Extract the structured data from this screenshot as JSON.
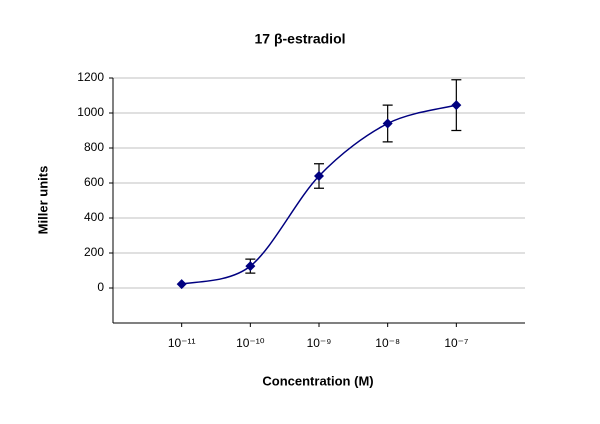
{
  "chart_data": {
    "type": "line",
    "title": "17 β-estradiol",
    "x_label": "Concentration (M)",
    "y_label": "Miller units",
    "x": [
      1e-11,
      1e-10,
      1e-09,
      1e-08,
      1e-07
    ],
    "series": [
      {
        "color": "#000080",
        "values": [
          22,
          125,
          640,
          940,
          1045
        ],
        "errors": [
          0,
          40,
          70,
          105,
          145
        ]
      }
    ],
    "xscale": "log",
    "xlim": [
      1e-12,
      1e-06
    ],
    "xticks": [
      {
        "value": 1e-11,
        "label": "10⁻¹¹"
      },
      {
        "value": 1e-10,
        "label": "10⁻¹⁰"
      },
      {
        "value": 1e-09,
        "label": "10⁻⁹"
      },
      {
        "value": 1e-08,
        "label": "10⁻⁸"
      },
      {
        "value": 1e-07,
        "label": "10⁻⁷"
      }
    ],
    "ylim": [
      -200,
      1200
    ],
    "yticks": [
      0,
      200,
      400,
      600,
      800,
      1000,
      1200
    ],
    "grid": true
  }
}
